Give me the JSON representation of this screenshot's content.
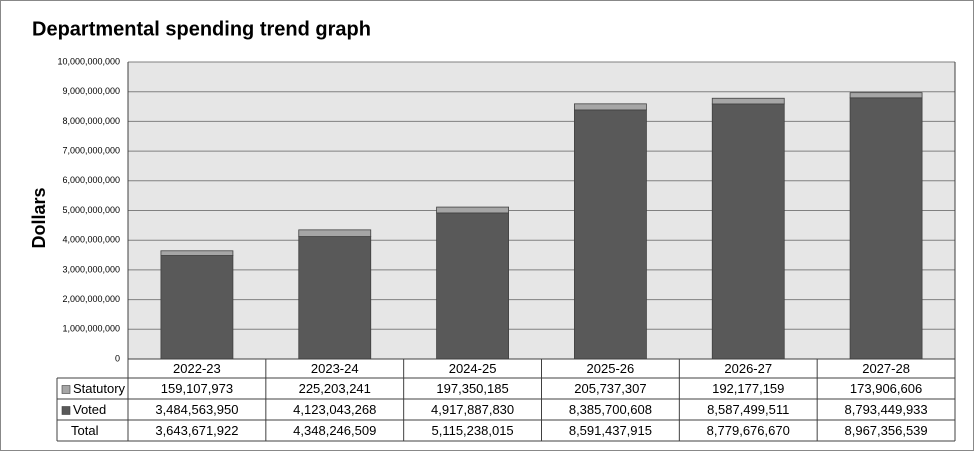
{
  "chart_data": {
    "type": "stacked_bar",
    "title": "Departmental spending trend graph",
    "y_label": "Dollars",
    "categories": [
      "2022-23",
      "2023-24",
      "2024-25",
      "2025-26",
      "2026-27",
      "2027-28"
    ],
    "series": [
      {
        "name": "Statutory",
        "color": "#a6a6a6",
        "values": [
          159107973,
          225203241,
          197350185,
          205737307,
          192177159,
          173906606
        ],
        "value_labels": [
          "159,107,973",
          "225,203,241",
          "197,350,185",
          "205,737,307",
          "192,177,159",
          "173,906,606"
        ]
      },
      {
        "name": "Voted",
        "color": "#595959",
        "values": [
          3484563950,
          4123043268,
          4917887830,
          8385700608,
          8587499511,
          8793449933
        ],
        "value_labels": [
          "3,484,563,950",
          "4,123,043,268",
          "4,917,887,830",
          "8,385,700,608",
          "8,587,499,511",
          "8,793,449,933"
        ]
      }
    ],
    "total_row": {
      "name": "Total",
      "labels": [
        "3,643,671,922",
        "4,348,246,509",
        "5,115,238,015",
        "8,591,437,915",
        "8,779,676,670",
        "8,967,356,539"
      ]
    },
    "ylim": [
      0,
      10000000000
    ],
    "yticks": [
      0,
      {
        "value": 1000000000,
        "label": "1,000,000,000"
      },
      {
        "value": 2000000000,
        "label": "2,000,000,000"
      },
      {
        "value": 3000000000,
        "label": "3,000,000,000"
      },
      {
        "value": 4000000000,
        "label": "4,000,000,000"
      },
      {
        "value": 5000000000,
        "label": "5,000,000,000"
      },
      {
        "value": 6000000000,
        "label": "6,000,000,000"
      },
      {
        "value": 7000000000,
        "label": "7,000,000,000"
      },
      {
        "value": 8000000000,
        "label": "8,000,000,000"
      },
      {
        "value": 9000000000,
        "label": "9,000,000,000"
      },
      {
        "value": 10000000000,
        "label": "10,000,000,000"
      }
    ],
    "grid": true
  }
}
